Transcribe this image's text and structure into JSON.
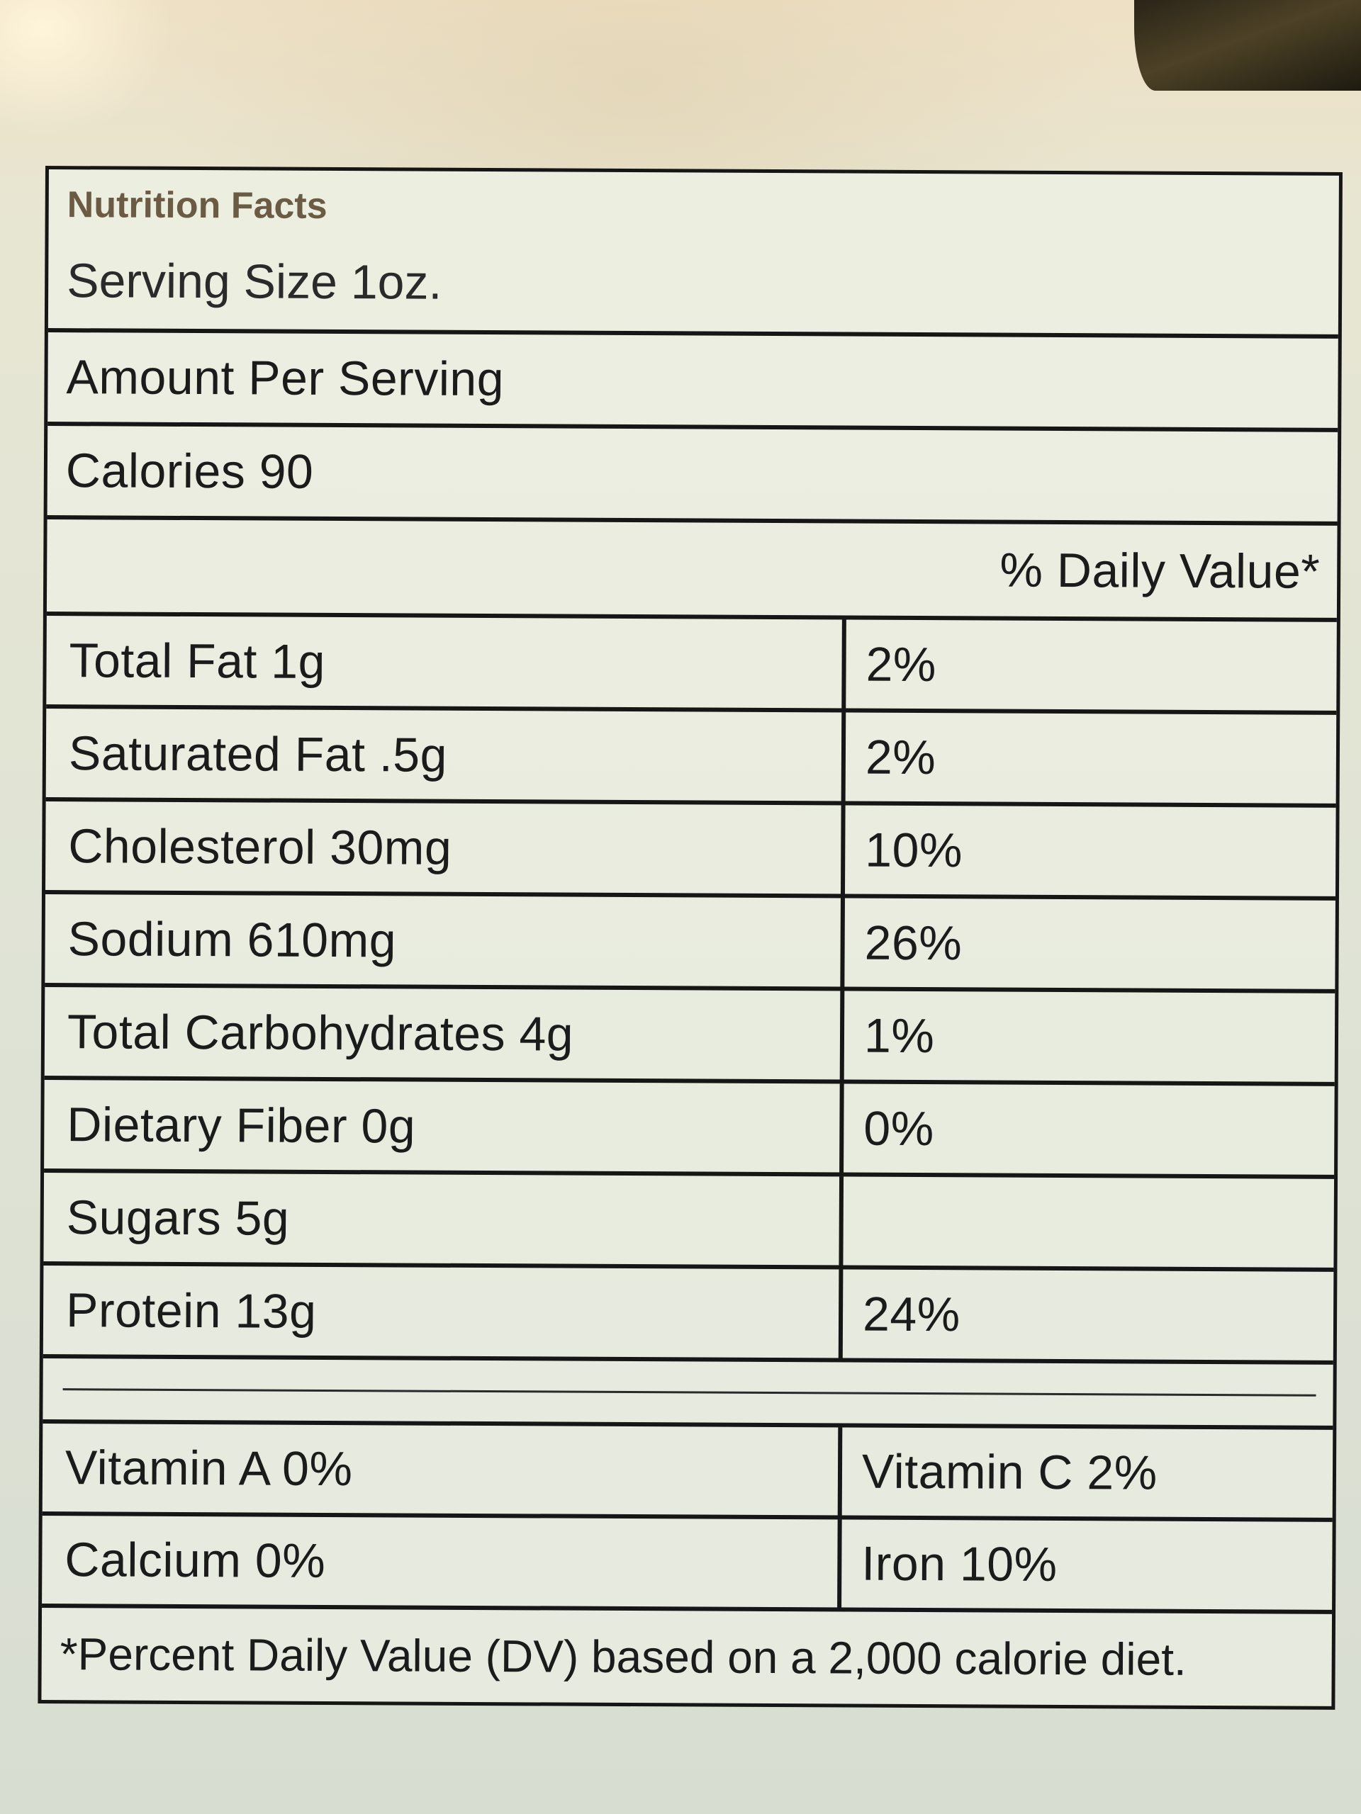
{
  "label": {
    "title": "Nutrition Facts",
    "serving_size": "Serving Size 1oz.",
    "amount_per_serving": "Amount Per Serving",
    "calories": "Calories 90",
    "daily_value_header": "% Daily Value*",
    "nutrients": [
      {
        "name": "Total Fat 1g",
        "dv": "2%"
      },
      {
        "name": "Saturated Fat .5g",
        "dv": "2%"
      },
      {
        "name": "Cholesterol 30mg",
        "dv": "10%"
      },
      {
        "name": "Sodium 610mg",
        "dv": "26%"
      },
      {
        "name": "Total Carbohydrates 4g",
        "dv": "1%"
      },
      {
        "name": "Dietary Fiber 0g",
        "dv": "0%"
      },
      {
        "name": "Sugars 5g",
        "dv": ""
      },
      {
        "name": "Protein 13g",
        "dv": "24%"
      }
    ],
    "vitamins": [
      {
        "left": "Vitamin A 0%",
        "right": "Vitamin C 2%"
      },
      {
        "left": "Calcium 0%",
        "right": "Iron 10%"
      }
    ],
    "footnote": "*Percent Daily Value (DV) based on a 2,000 calorie diet."
  }
}
